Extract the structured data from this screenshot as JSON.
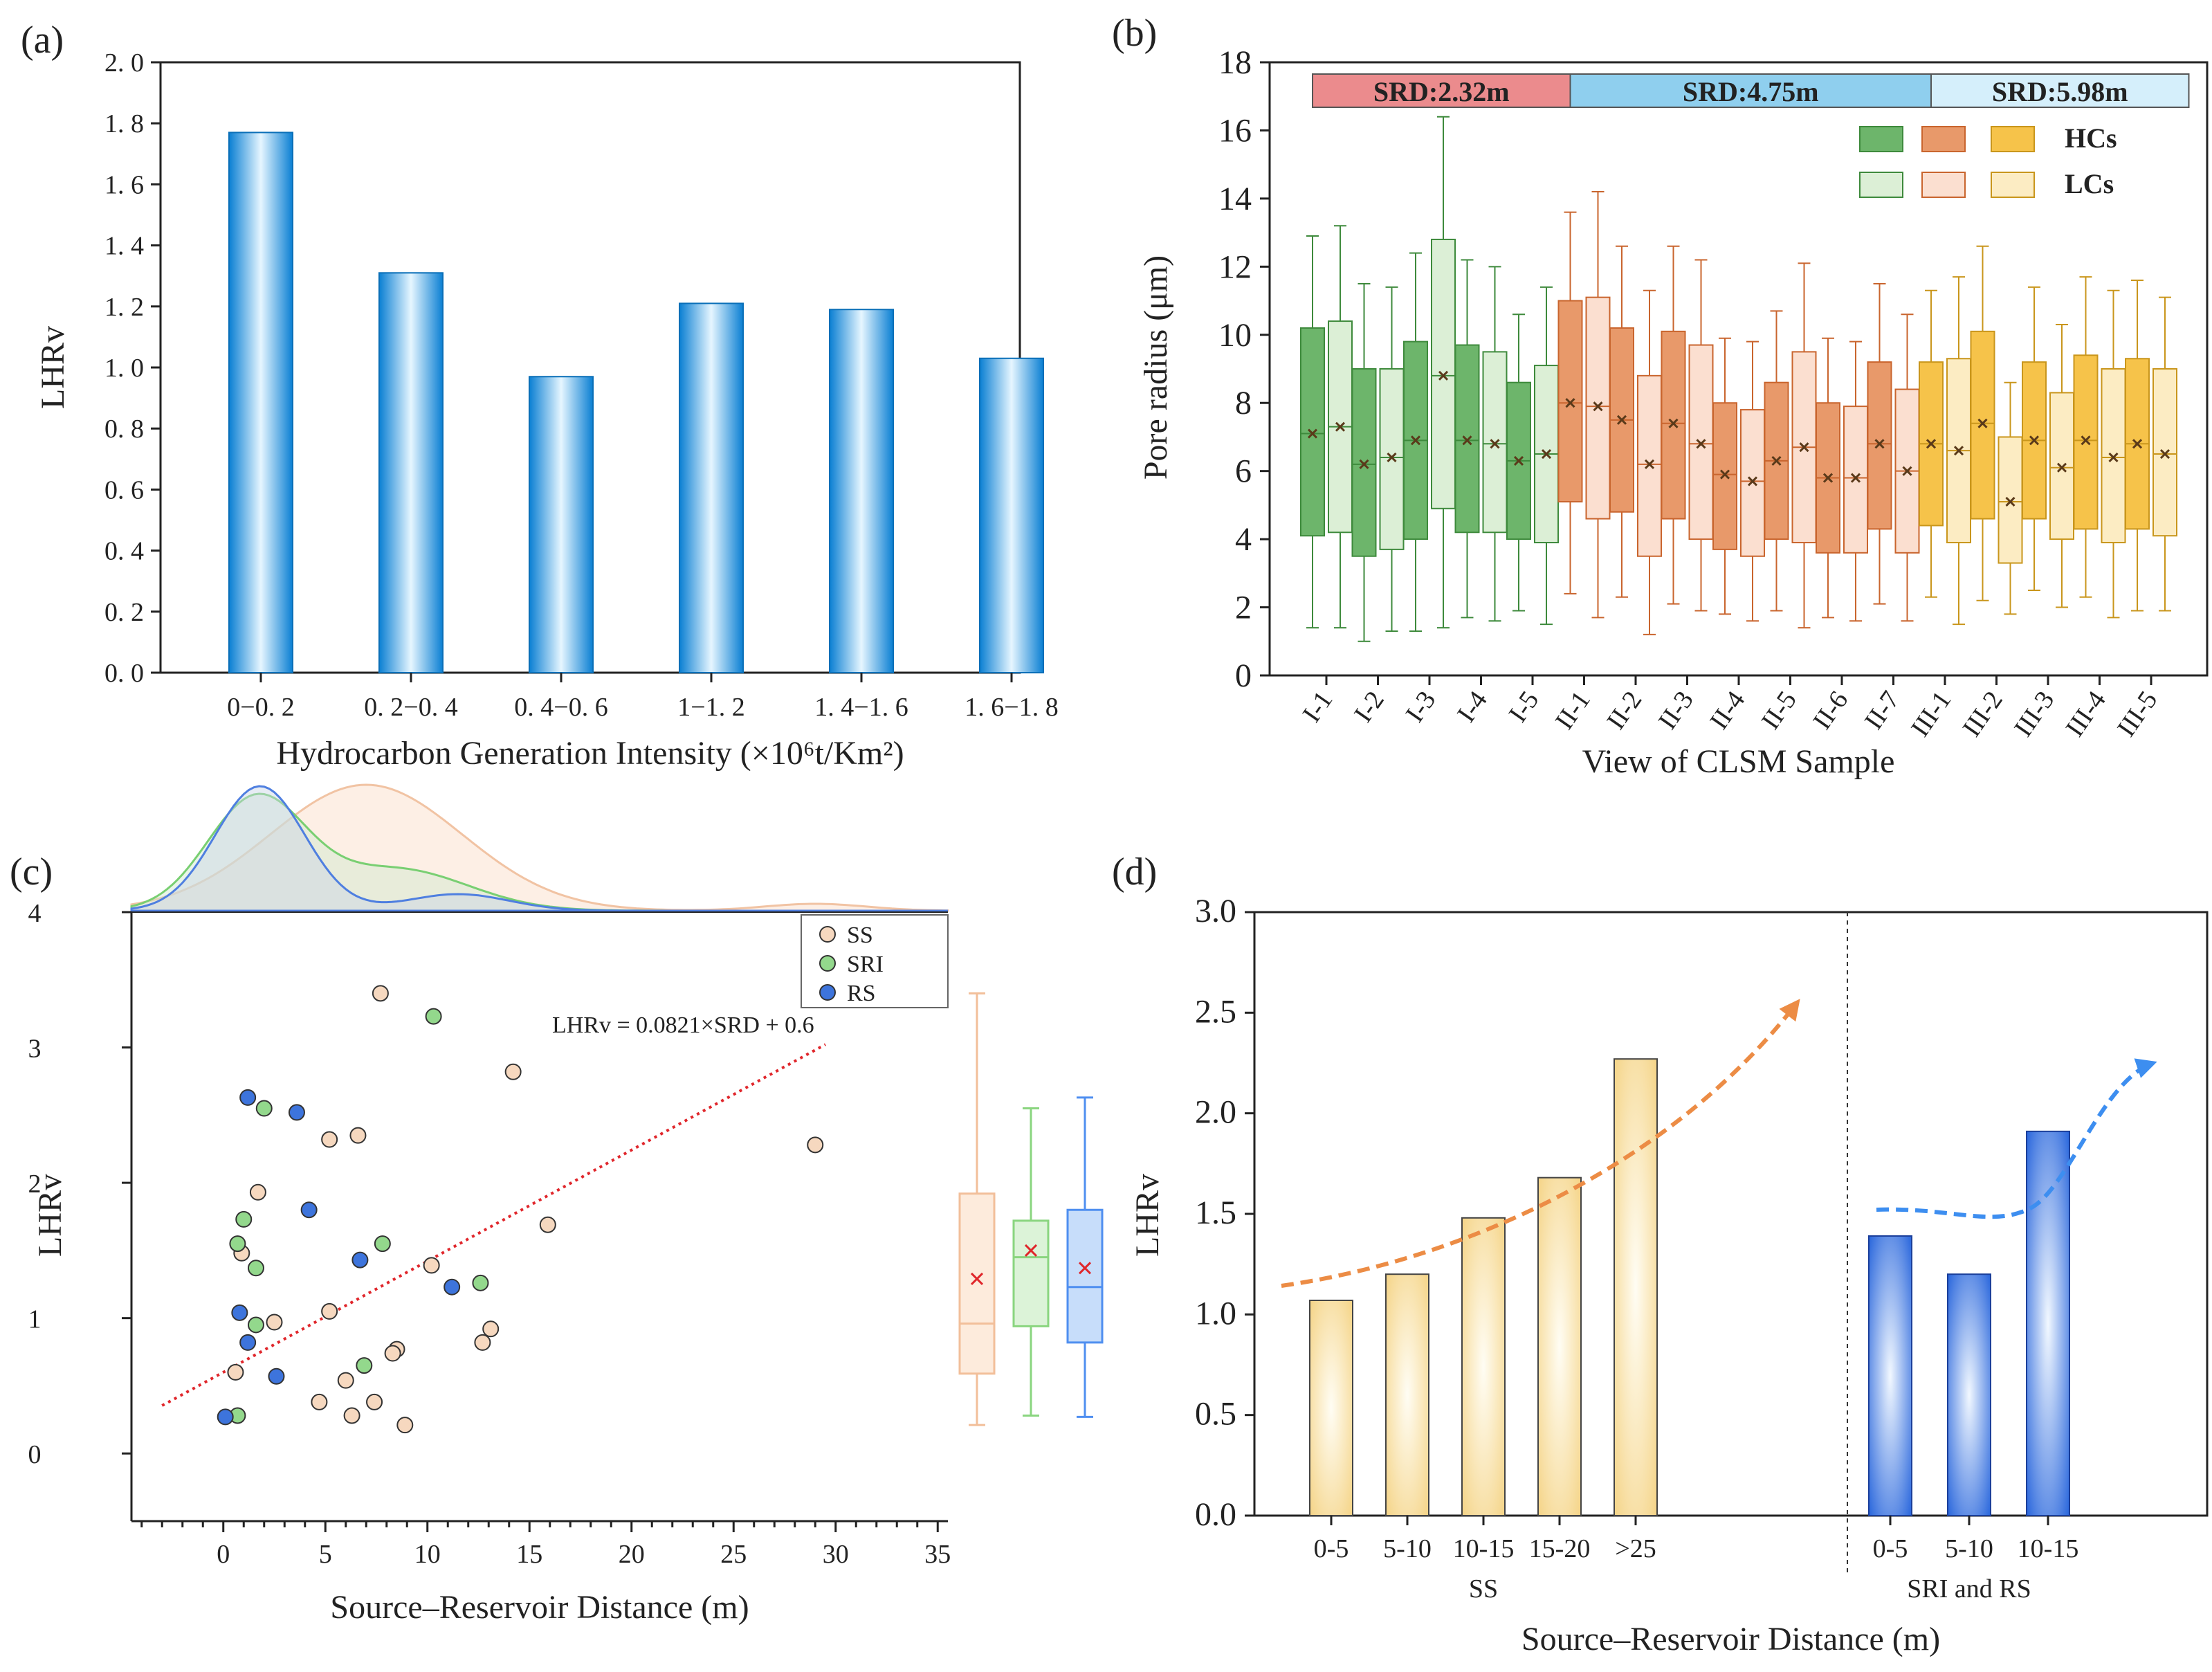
{
  "colors": {
    "blue_bar_edge": "#0a7fd3",
    "blue_bar_mid": "#e6f6ff",
    "green_hc": "#6db56b",
    "green_lc": "#dcefd6",
    "orange_hc": "#e8996a",
    "orange_lc": "#fbdfd0",
    "yellow_hc": "#f6c34a",
    "yellow_lc": "#fcecc3",
    "ss_marker": "#f6d8bf",
    "sri_marker": "#93d88c",
    "rs_marker": "#3d74dc",
    "trend_line": "#e0262b",
    "srd1": "#eb8b8d",
    "srd2": "#8fcfee",
    "srd3": "#d5effb"
  },
  "panels": {
    "a": {
      "label": "(a)"
    },
    "b": {
      "label": "(b)"
    },
    "c": {
      "label": "(c)"
    },
    "d": {
      "label": "(d)"
    }
  },
  "chart_data": [
    {
      "panel": "a",
      "type": "bar",
      "title": "",
      "xlabel": "Hydrocarbon Generation Intensity (×10⁶t/Km²)",
      "ylabel": "LHRv",
      "ylim": [
        0,
        2.0
      ],
      "yticks": [
        "0. 0",
        "0. 2",
        "0. 4",
        "0. 6",
        "0. 8",
        "1. 0",
        "1. 2",
        "1. 4",
        "1. 6",
        "1. 8",
        "2. 0"
      ],
      "categories": [
        "0−0. 2",
        "0. 2−0. 4",
        "0. 4−0. 6",
        "1−1. 2",
        "1. 4−1. 6",
        "1. 6−1. 8"
      ],
      "values": [
        1.77,
        1.31,
        0.97,
        1.21,
        1.19,
        1.03
      ]
    },
    {
      "panel": "b",
      "type": "box",
      "xlabel": "View of CLSM Sample",
      "ylabel": "Pore radius (μm)",
      "ylim": [
        0,
        18
      ],
      "yticks": [
        "0",
        "2",
        "4",
        "6",
        "8",
        "10",
        "12",
        "14",
        "16",
        "18"
      ],
      "xticks": [
        "I-1",
        "I-2",
        "I-3",
        "I-4",
        "I-5",
        "II-1",
        "II-2",
        "II-3",
        "II-4",
        "II-5",
        "II-6",
        "II-7",
        "III-1",
        "III-2",
        "III-3",
        "III-4",
        "III-5"
      ],
      "srd_bands": [
        {
          "text": "SRD:2.32m",
          "from_pair": 0,
          "to_pair": 5,
          "color": "#eb8b8d"
        },
        {
          "text": "SRD:4.75m",
          "from_pair": 5,
          "to_pair": 12,
          "color": "#8fcfee"
        },
        {
          "text": "SRD:5.98m",
          "from_pair": 12,
          "to_pair": 17,
          "color": "#d5effb"
        }
      ],
      "legend": {
        "hc_label": "HCs",
        "lc_label": "LCs"
      },
      "boxes": [
        {
          "view": "I-1",
          "kind": "HC",
          "group": "green",
          "min": 1.4,
          "q1": 4.1,
          "median": 7.1,
          "mean": 7.1,
          "q3": 10.2,
          "max": 12.9
        },
        {
          "view": "I-1",
          "kind": "LC",
          "group": "green",
          "min": 1.4,
          "q1": 4.2,
          "median": 7.3,
          "mean": 7.3,
          "q3": 10.4,
          "max": 13.2
        },
        {
          "view": "I-2",
          "kind": "HC",
          "group": "green",
          "min": 1.0,
          "q1": 3.5,
          "median": 6.2,
          "mean": 6.2,
          "q3": 9.0,
          "max": 11.5
        },
        {
          "view": "I-2",
          "kind": "LC",
          "group": "green",
          "min": 1.3,
          "q1": 3.7,
          "median": 6.4,
          "mean": 6.4,
          "q3": 9.0,
          "max": 11.4
        },
        {
          "view": "I-3",
          "kind": "HC",
          "group": "green",
          "min": 1.3,
          "q1": 4.0,
          "median": 6.9,
          "mean": 6.9,
          "q3": 9.8,
          "max": 12.4
        },
        {
          "view": "I-3",
          "kind": "LC",
          "group": "green",
          "min": 1.4,
          "q1": 4.9,
          "median": 8.8,
          "mean": 8.8,
          "q3": 12.8,
          "max": 16.4
        },
        {
          "view": "I-4",
          "kind": "HC",
          "group": "green",
          "min": 1.7,
          "q1": 4.2,
          "median": 6.9,
          "mean": 6.9,
          "q3": 9.7,
          "max": 12.2
        },
        {
          "view": "I-4",
          "kind": "LC",
          "group": "green",
          "min": 1.6,
          "q1": 4.2,
          "median": 6.8,
          "mean": 6.8,
          "q3": 9.5,
          "max": 12.0
        },
        {
          "view": "I-5",
          "kind": "HC",
          "group": "green",
          "min": 1.9,
          "q1": 4.0,
          "median": 6.3,
          "mean": 6.3,
          "q3": 8.6,
          "max": 10.6
        },
        {
          "view": "I-5",
          "kind": "LC",
          "group": "green",
          "min": 1.5,
          "q1": 3.9,
          "median": 6.5,
          "mean": 6.5,
          "q3": 9.1,
          "max": 11.4
        },
        {
          "view": "II-1",
          "kind": "HC",
          "group": "orange",
          "min": 2.4,
          "q1": 5.1,
          "median": 8.0,
          "mean": 8.0,
          "q3": 11.0,
          "max": 13.6
        },
        {
          "view": "II-1",
          "kind": "LC",
          "group": "orange",
          "min": 1.7,
          "q1": 4.6,
          "median": 7.9,
          "mean": 7.9,
          "q3": 11.1,
          "max": 14.2
        },
        {
          "view": "II-2",
          "kind": "HC",
          "group": "orange",
          "min": 2.3,
          "q1": 4.8,
          "median": 7.5,
          "mean": 7.5,
          "q3": 10.2,
          "max": 12.6
        },
        {
          "view": "II-2",
          "kind": "LC",
          "group": "orange",
          "min": 1.2,
          "q1": 3.5,
          "median": 6.2,
          "mean": 6.2,
          "q3": 8.8,
          "max": 11.3
        },
        {
          "view": "II-3",
          "kind": "HC",
          "group": "orange",
          "min": 2.1,
          "q1": 4.6,
          "median": 7.4,
          "mean": 7.4,
          "q3": 10.1,
          "max": 12.6
        },
        {
          "view": "II-3",
          "kind": "LC",
          "group": "orange",
          "min": 1.9,
          "q1": 4.0,
          "median": 6.8,
          "mean": 6.8,
          "q3": 9.7,
          "max": 12.2
        },
        {
          "view": "II-4",
          "kind": "HC",
          "group": "orange",
          "min": 1.8,
          "q1": 3.7,
          "median": 5.9,
          "mean": 5.9,
          "q3": 8.0,
          "max": 9.9
        },
        {
          "view": "II-4",
          "kind": "LC",
          "group": "orange",
          "min": 1.6,
          "q1": 3.5,
          "median": 5.7,
          "mean": 5.7,
          "q3": 7.8,
          "max": 9.8
        },
        {
          "view": "II-5",
          "kind": "HC",
          "group": "orange",
          "min": 1.9,
          "q1": 4.0,
          "median": 6.3,
          "mean": 6.3,
          "q3": 8.6,
          "max": 10.7
        },
        {
          "view": "II-5",
          "kind": "LC",
          "group": "orange",
          "min": 1.4,
          "q1": 3.9,
          "median": 6.7,
          "mean": 6.7,
          "q3": 9.5,
          "max": 12.1
        },
        {
          "view": "II-6",
          "kind": "HC",
          "group": "orange",
          "min": 1.7,
          "q1": 3.6,
          "median": 5.8,
          "mean": 5.8,
          "q3": 8.0,
          "max": 9.9
        },
        {
          "view": "II-6",
          "kind": "LC",
          "group": "orange",
          "min": 1.6,
          "q1": 3.6,
          "median": 5.8,
          "mean": 5.8,
          "q3": 7.9,
          "max": 9.8
        },
        {
          "view": "II-7",
          "kind": "HC",
          "group": "orange",
          "min": 2.1,
          "q1": 4.3,
          "median": 6.8,
          "mean": 6.8,
          "q3": 9.2,
          "max": 11.5
        },
        {
          "view": "II-7",
          "kind": "LC",
          "group": "orange",
          "min": 1.6,
          "q1": 3.6,
          "median": 6.0,
          "mean": 6.0,
          "q3": 8.4,
          "max": 10.6
        },
        {
          "view": "III-1",
          "kind": "HC",
          "group": "yellow",
          "min": 2.3,
          "q1": 4.4,
          "median": 6.8,
          "mean": 6.8,
          "q3": 9.2,
          "max": 11.3
        },
        {
          "view": "III-1",
          "kind": "LC",
          "group": "yellow",
          "min": 1.5,
          "q1": 3.9,
          "median": 6.6,
          "mean": 6.6,
          "q3": 9.3,
          "max": 11.7
        },
        {
          "view": "III-2",
          "kind": "HC",
          "group": "yellow",
          "min": 2.2,
          "q1": 4.6,
          "median": 7.4,
          "mean": 7.4,
          "q3": 10.1,
          "max": 12.6
        },
        {
          "view": "III-2",
          "kind": "LC",
          "group": "yellow",
          "min": 1.8,
          "q1": 3.3,
          "median": 5.1,
          "mean": 5.1,
          "q3": 7.0,
          "max": 8.6
        },
        {
          "view": "III-3",
          "kind": "HC",
          "group": "yellow",
          "min": 2.5,
          "q1": 4.6,
          "median": 6.9,
          "mean": 6.9,
          "q3": 9.2,
          "max": 11.4
        },
        {
          "view": "III-3",
          "kind": "LC",
          "group": "yellow",
          "min": 2.0,
          "q1": 4.0,
          "median": 6.1,
          "mean": 6.1,
          "q3": 8.3,
          "max": 10.3
        },
        {
          "view": "III-4",
          "kind": "HC",
          "group": "yellow",
          "min": 2.3,
          "q1": 4.3,
          "median": 6.9,
          "mean": 6.9,
          "q3": 9.4,
          "max": 11.7
        },
        {
          "view": "III-4",
          "kind": "LC",
          "group": "yellow",
          "min": 1.7,
          "q1": 3.9,
          "median": 6.4,
          "mean": 6.4,
          "q3": 9.0,
          "max": 11.3
        },
        {
          "view": "III-5",
          "kind": "HC",
          "group": "yellow",
          "min": 1.9,
          "q1": 4.3,
          "median": 6.8,
          "mean": 6.8,
          "q3": 9.3,
          "max": 11.6
        },
        {
          "view": "III-5",
          "kind": "LC",
          "group": "yellow",
          "min": 1.9,
          "q1": 4.1,
          "median": 6.5,
          "mean": 6.5,
          "q3": 9.0,
          "max": 11.1
        }
      ]
    },
    {
      "panel": "c",
      "type": "scatter",
      "xlabel": "Source–Reservoir Distance (m)",
      "ylabel": "LHRv",
      "xlim": [
        -4.5,
        35.5
      ],
      "ylim": [
        -0.5,
        4
      ],
      "xticks": [
        "0",
        "5",
        "10",
        "15",
        "20",
        "25",
        "30",
        "35"
      ],
      "yticks": [
        "0",
        "1",
        "2",
        "3",
        "4"
      ],
      "fit_label": "LHRv = 0.0821×SRD + 0.6",
      "fit": {
        "slope": 0.0821,
        "intercept": 0.6,
        "x_from": -3,
        "x_to": 29.5
      },
      "legend": [
        "SS",
        "SRI",
        "RS"
      ],
      "series": [
        {
          "name": "SS",
          "points": [
            [
              7.7,
              3.4
            ],
            [
              14.2,
              2.82
            ],
            [
              6.6,
              2.35
            ],
            [
              5.2,
              2.32
            ],
            [
              29.0,
              2.28
            ],
            [
              1.7,
              1.93
            ],
            [
              15.9,
              1.69
            ],
            [
              0.9,
              1.48
            ],
            [
              10.2,
              1.39
            ],
            [
              5.2,
              1.05
            ],
            [
              2.5,
              0.97
            ],
            [
              13.1,
              0.92
            ],
            [
              12.7,
              0.82
            ],
            [
              8.5,
              0.77
            ],
            [
              8.3,
              0.74
            ],
            [
              0.6,
              0.6
            ],
            [
              6.0,
              0.54
            ],
            [
              4.7,
              0.38
            ],
            [
              7.4,
              0.38
            ],
            [
              6.3,
              0.28
            ],
            [
              8.9,
              0.21
            ]
          ]
        },
        {
          "name": "SRI",
          "points": [
            [
              10.3,
              3.23
            ],
            [
              2.0,
              2.55
            ],
            [
              1.0,
              1.73
            ],
            [
              0.7,
              1.55
            ],
            [
              7.8,
              1.55
            ],
            [
              1.6,
              1.37
            ],
            [
              12.6,
              1.26
            ],
            [
              1.6,
              0.95
            ],
            [
              6.9,
              0.65
            ],
            [
              0.7,
              0.28
            ]
          ]
        },
        {
          "name": "RS",
          "points": [
            [
              1.2,
              2.63
            ],
            [
              3.6,
              2.52
            ],
            [
              4.2,
              1.8
            ],
            [
              6.7,
              1.43
            ],
            [
              11.2,
              1.23
            ],
            [
              0.8,
              1.04
            ],
            [
              1.2,
              0.82
            ],
            [
              2.6,
              0.57
            ],
            [
              0.1,
              0.27
            ]
          ]
        }
      ],
      "marginal_boxes": [
        {
          "name": "SS",
          "min": 0.21,
          "q1": 0.59,
          "median": 0.96,
          "mean": 1.29,
          "q3": 1.92,
          "max": 3.4
        },
        {
          "name": "SRI",
          "min": 0.28,
          "q1": 0.94,
          "median": 1.45,
          "mean": 1.5,
          "q3": 1.72,
          "max": 2.55
        },
        {
          "name": "RS",
          "min": 0.27,
          "q1": 0.82,
          "median": 1.23,
          "mean": 1.37,
          "q3": 1.8,
          "max": 2.63
        }
      ],
      "density_peaks": [
        {
          "name": "SS",
          "peak_x": 7,
          "tail_peak_x": 29
        },
        {
          "name": "SRI",
          "peak_x": 1.5,
          "shoulder_x": 8.5
        },
        {
          "name": "RS",
          "peak_x": 1.8,
          "shoulder_x": 11.5
        }
      ]
    },
    {
      "panel": "d",
      "type": "bar",
      "xlabel": "Source–Reservoir Distance (m)",
      "ylabel": "LHRv",
      "ylim": [
        0,
        3.0
      ],
      "yticks": [
        "0.0",
        "0.5",
        "1.0",
        "1.5",
        "2.0",
        "2.5",
        "3.0"
      ],
      "groups": [
        {
          "name": "SS",
          "categories": [
            "0-5",
            "5-10",
            "10-15",
            "15-20",
            ">25"
          ],
          "values": [
            1.07,
            1.2,
            1.48,
            1.68,
            2.27
          ]
        },
        {
          "name": "SRI  and RS",
          "categories": [
            "0-5",
            "5-10",
            "10-15"
          ],
          "values": [
            1.39,
            1.2,
            1.91
          ]
        }
      ]
    }
  ]
}
